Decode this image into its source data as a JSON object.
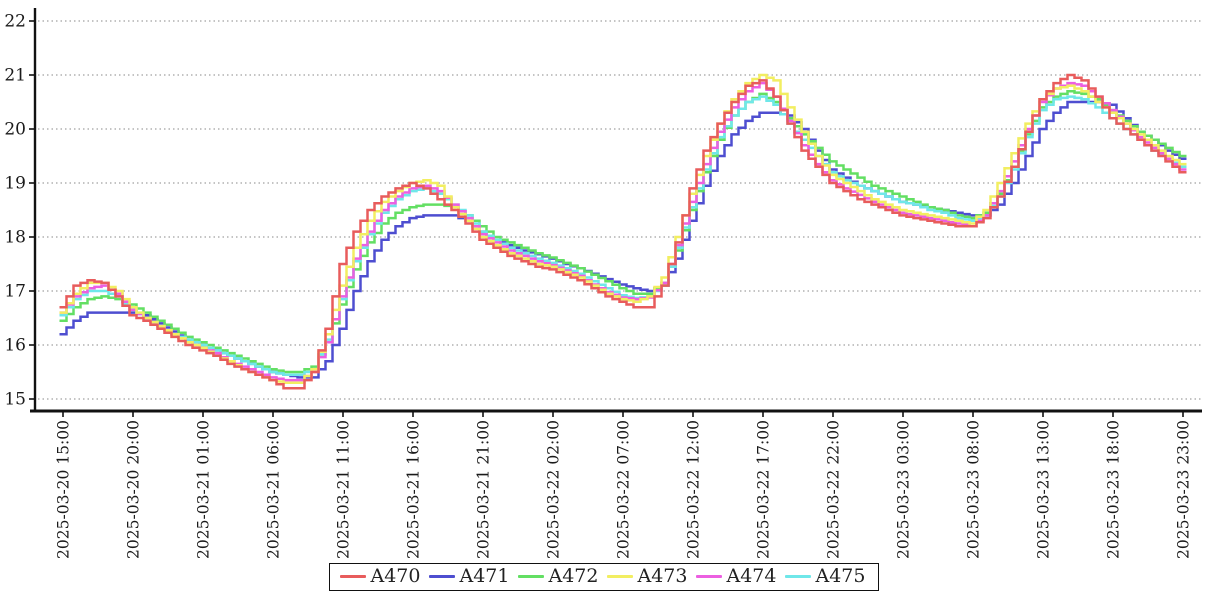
{
  "chart_data": {
    "type": "line",
    "step_style": "steps-mid",
    "title": "",
    "xlabel": "",
    "ylabel": "",
    "grid": "horizontal-dotted",
    "legend_position": "bottom-center",
    "ylim": [
      15,
      22
    ],
    "y_ticks": [
      15,
      16,
      17,
      18,
      19,
      20,
      21,
      22
    ],
    "x_hours_total": 80,
    "x_tick_every_hours": 5,
    "x_tick_labels": [
      "2025-03-20 15:00",
      "2025-03-20 20:00",
      "2025-03-21 01:00",
      "2025-03-21 06:00",
      "2025-03-21 11:00",
      "2025-03-21 16:00",
      "2025-03-21 21:00",
      "2025-03-22 02:00",
      "2025-03-22 07:00",
      "2025-03-22 12:00",
      "2025-03-22 17:00",
      "2025-03-22 22:00",
      "2025-03-23 03:00",
      "2025-03-23 08:00",
      "2025-03-23 13:00",
      "2025-03-23 18:00",
      "2025-03-23 23:00"
    ],
    "series": [
      {
        "name": "A470",
        "color": "#e85c5c",
        "values": [
          16.7,
          17.1,
          17.2,
          17.15,
          16.9,
          16.55,
          16.45,
          16.3,
          16.15,
          16.0,
          15.9,
          15.8,
          15.65,
          15.55,
          15.45,
          15.35,
          15.2,
          15.2,
          15.5,
          16.3,
          17.5,
          18.1,
          18.5,
          18.75,
          18.9,
          19.0,
          18.9,
          18.7,
          18.5,
          18.25,
          17.95,
          17.8,
          17.65,
          17.55,
          17.45,
          17.4,
          17.3,
          17.2,
          17.05,
          16.9,
          16.8,
          16.7,
          16.7,
          17.1,
          17.9,
          18.9,
          19.6,
          20.1,
          20.5,
          20.8,
          20.9,
          20.6,
          20.1,
          19.6,
          19.3,
          19.0,
          18.85,
          18.7,
          18.6,
          18.5,
          18.4,
          18.35,
          18.3,
          18.25,
          18.2,
          18.2,
          18.35,
          18.75,
          19.3,
          19.95,
          20.55,
          20.85,
          21.0,
          20.9,
          20.6,
          20.2,
          20.0,
          19.8,
          19.6,
          19.4,
          19.2
        ]
      },
      {
        "name": "A471",
        "color": "#4e4ed0",
        "values": [
          16.2,
          16.45,
          16.6,
          16.6,
          16.6,
          16.6,
          16.55,
          16.4,
          16.25,
          16.1,
          16.0,
          15.9,
          15.8,
          15.7,
          15.6,
          15.5,
          15.45,
          15.4,
          15.4,
          15.7,
          16.3,
          17.0,
          17.55,
          17.95,
          18.2,
          18.35,
          18.4,
          18.4,
          18.4,
          18.3,
          18.1,
          17.95,
          17.85,
          17.75,
          17.68,
          17.6,
          17.5,
          17.42,
          17.32,
          17.22,
          17.12,
          17.05,
          17.0,
          17.1,
          17.6,
          18.3,
          18.95,
          19.5,
          19.9,
          20.15,
          20.3,
          20.3,
          20.25,
          20.0,
          19.6,
          19.25,
          19.1,
          18.95,
          18.85,
          18.75,
          18.65,
          18.6,
          18.55,
          18.5,
          18.45,
          18.4,
          18.4,
          18.6,
          19.0,
          19.5,
          20.0,
          20.3,
          20.5,
          20.5,
          20.5,
          20.45,
          20.2,
          19.95,
          19.8,
          19.6,
          19.45
        ]
      },
      {
        "name": "A472",
        "color": "#63df63",
        "values": [
          16.45,
          16.7,
          16.85,
          16.9,
          16.85,
          16.75,
          16.6,
          16.45,
          16.3,
          16.15,
          16.05,
          15.95,
          15.85,
          15.75,
          15.65,
          15.55,
          15.5,
          15.5,
          15.6,
          16.05,
          16.75,
          17.4,
          17.9,
          18.25,
          18.45,
          18.55,
          18.6,
          18.6,
          18.55,
          18.4,
          18.2,
          18.0,
          17.9,
          17.8,
          17.7,
          17.62,
          17.52,
          17.42,
          17.3,
          17.18,
          17.05,
          16.95,
          16.95,
          17.15,
          17.75,
          18.5,
          19.2,
          19.8,
          20.25,
          20.5,
          20.65,
          20.5,
          20.2,
          19.9,
          19.65,
          19.4,
          19.25,
          19.1,
          18.95,
          18.85,
          18.75,
          18.65,
          18.55,
          18.5,
          18.4,
          18.35,
          18.45,
          18.8,
          19.3,
          19.9,
          20.4,
          20.6,
          20.7,
          20.65,
          20.55,
          20.35,
          20.15,
          19.95,
          19.8,
          19.65,
          19.5
        ]
      },
      {
        "name": "A473",
        "color": "#f2ee61",
        "values": [
          16.6,
          16.95,
          17.15,
          17.15,
          17.0,
          16.7,
          16.5,
          16.35,
          16.2,
          16.05,
          15.95,
          15.8,
          15.7,
          15.55,
          15.45,
          15.35,
          15.3,
          15.3,
          15.55,
          16.2,
          17.1,
          17.8,
          18.3,
          18.65,
          18.85,
          19.0,
          19.05,
          18.95,
          18.55,
          18.3,
          18.0,
          17.85,
          17.7,
          17.6,
          17.5,
          17.45,
          17.35,
          17.25,
          17.1,
          16.95,
          16.85,
          16.8,
          16.9,
          17.25,
          18.0,
          18.8,
          19.5,
          20.1,
          20.55,
          20.85,
          21.0,
          20.9,
          20.4,
          19.95,
          19.5,
          19.15,
          19.0,
          18.85,
          18.7,
          18.6,
          18.5,
          18.45,
          18.4,
          18.35,
          18.3,
          18.25,
          18.5,
          19.0,
          19.55,
          20.1,
          20.55,
          20.75,
          20.8,
          20.7,
          20.5,
          20.3,
          20.1,
          19.9,
          19.7,
          19.5,
          19.35
        ]
      },
      {
        "name": "A474",
        "color": "#ec5fe1",
        "values": [
          16.6,
          16.9,
          17.05,
          17.1,
          16.95,
          16.65,
          16.5,
          16.35,
          16.2,
          16.05,
          15.95,
          15.85,
          15.7,
          15.6,
          15.5,
          15.4,
          15.35,
          15.35,
          15.5,
          16.05,
          16.9,
          17.6,
          18.1,
          18.5,
          18.75,
          18.9,
          18.95,
          18.85,
          18.6,
          18.35,
          18.05,
          17.9,
          17.75,
          17.65,
          17.55,
          17.48,
          17.38,
          17.28,
          17.12,
          16.98,
          16.88,
          16.85,
          16.88,
          17.15,
          17.85,
          18.65,
          19.35,
          19.95,
          20.4,
          20.7,
          20.85,
          20.6,
          20.15,
          19.7,
          19.35,
          19.05,
          18.9,
          18.78,
          18.65,
          18.55,
          18.45,
          18.4,
          18.35,
          18.3,
          18.25,
          18.2,
          18.4,
          18.85,
          19.4,
          20.0,
          20.5,
          20.75,
          20.85,
          20.8,
          20.6,
          20.35,
          20.1,
          19.85,
          19.65,
          19.45,
          19.25
        ]
      },
      {
        "name": "A475",
        "color": "#6fe7e9",
        "values": [
          16.55,
          16.85,
          17.0,
          17.0,
          16.9,
          16.65,
          16.5,
          16.35,
          16.2,
          16.1,
          16.0,
          15.9,
          15.8,
          15.7,
          15.6,
          15.5,
          15.45,
          15.45,
          15.55,
          16.1,
          16.85,
          17.55,
          18.05,
          18.45,
          18.7,
          18.85,
          18.9,
          18.8,
          18.6,
          18.4,
          18.1,
          17.95,
          17.8,
          17.7,
          17.6,
          17.52,
          17.42,
          17.32,
          17.18,
          17.05,
          16.92,
          16.87,
          16.9,
          17.1,
          17.8,
          18.55,
          19.25,
          19.85,
          20.25,
          20.5,
          20.6,
          20.45,
          20.1,
          19.8,
          19.5,
          19.2,
          19.05,
          18.95,
          18.85,
          18.75,
          18.65,
          18.6,
          18.5,
          18.45,
          18.35,
          18.3,
          18.4,
          18.75,
          19.25,
          19.85,
          20.35,
          20.55,
          20.6,
          20.55,
          20.4,
          20.2,
          20.0,
          19.8,
          19.6,
          19.45,
          19.3
        ]
      }
    ]
  }
}
